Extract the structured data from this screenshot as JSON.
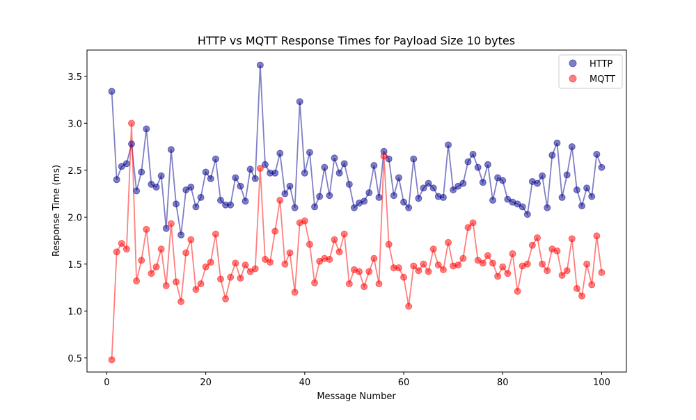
{
  "chart_data": {
    "type": "line",
    "title": "HTTP vs MQTT Response Times for Payload Size 10 bytes",
    "xlabel": "Message Number",
    "ylabel": "Response Time (ms)",
    "xlim": [
      -4.0,
      105.0
    ],
    "ylim": [
      0.35,
      3.78
    ],
    "xticks": [
      0,
      20,
      40,
      60,
      80,
      100
    ],
    "xtick_labels": [
      "0",
      "20",
      "40",
      "60",
      "80",
      "100"
    ],
    "yticks": [
      0.5,
      1.0,
      1.5,
      2.0,
      2.5,
      3.0,
      3.5
    ],
    "ytick_labels": [
      "0.5",
      "1.0",
      "1.5",
      "2.0",
      "2.5",
      "3.0",
      "3.5"
    ],
    "grid": false,
    "legend_position": "top-right",
    "x": [
      1,
      2,
      3,
      4,
      5,
      6,
      7,
      8,
      9,
      10,
      11,
      12,
      13,
      14,
      15,
      16,
      17,
      18,
      19,
      20,
      21,
      22,
      23,
      24,
      25,
      26,
      27,
      28,
      29,
      30,
      31,
      32,
      33,
      34,
      35,
      36,
      37,
      38,
      39,
      40,
      41,
      42,
      43,
      44,
      45,
      46,
      47,
      48,
      49,
      50,
      51,
      52,
      53,
      54,
      55,
      56,
      57,
      58,
      59,
      60,
      61,
      62,
      63,
      64,
      65,
      66,
      67,
      68,
      69,
      70,
      71,
      72,
      73,
      74,
      75,
      76,
      77,
      78,
      79,
      80,
      81,
      82,
      83,
      84,
      85,
      86,
      87,
      88,
      89,
      90,
      91,
      92,
      93,
      94,
      95,
      96,
      97,
      98,
      99,
      100
    ],
    "series": [
      {
        "name": "HTTP",
        "color": "#00008b",
        "values": [
          3.34,
          2.4,
          2.54,
          2.57,
          2.78,
          2.28,
          2.48,
          2.94,
          2.35,
          2.32,
          2.44,
          1.88,
          2.72,
          2.14,
          1.81,
          2.29,
          2.32,
          2.11,
          2.21,
          2.48,
          2.41,
          2.62,
          2.18,
          2.13,
          2.13,
          2.42,
          2.33,
          2.17,
          2.51,
          2.41,
          3.62,
          2.56,
          2.47,
          2.47,
          2.68,
          2.25,
          2.33,
          2.1,
          3.23,
          2.47,
          2.69,
          2.11,
          2.22,
          2.53,
          2.23,
          2.63,
          2.47,
          2.57,
          2.35,
          2.1,
          2.15,
          2.17,
          2.26,
          2.55,
          2.21,
          2.7,
          2.62,
          2.23,
          2.42,
          2.16,
          2.1,
          2.62,
          2.2,
          2.31,
          2.36,
          2.31,
          2.22,
          2.21,
          2.77,
          2.29,
          2.33,
          2.36,
          2.59,
          2.67,
          2.53,
          2.37,
          2.56,
          2.18,
          2.42,
          2.39,
          2.19,
          2.16,
          2.14,
          2.11,
          2.03,
          2.38,
          2.36,
          2.44,
          2.1,
          2.66,
          2.79,
          2.21,
          2.45,
          2.75,
          2.29,
          2.12,
          2.31,
          2.22,
          2.67,
          2.53
        ]
      },
      {
        "name": "MQTT",
        "color": "#ff0000",
        "values": [
          0.48,
          1.63,
          1.72,
          1.66,
          3.0,
          1.32,
          1.54,
          1.87,
          1.4,
          1.47,
          1.66,
          1.27,
          1.93,
          1.31,
          1.1,
          1.62,
          1.76,
          1.23,
          1.29,
          1.47,
          1.52,
          1.82,
          1.34,
          1.13,
          1.36,
          1.51,
          1.35,
          1.49,
          1.42,
          1.45,
          2.52,
          1.55,
          1.52,
          1.85,
          2.18,
          1.5,
          1.62,
          1.2,
          1.94,
          1.96,
          1.71,
          1.3,
          1.53,
          1.56,
          1.55,
          1.76,
          1.63,
          1.82,
          1.29,
          1.44,
          1.42,
          1.26,
          1.42,
          1.56,
          1.29,
          2.65,
          1.71,
          1.46,
          1.46,
          1.36,
          1.05,
          1.48,
          1.43,
          1.5,
          1.42,
          1.66,
          1.49,
          1.44,
          1.73,
          1.48,
          1.49,
          1.56,
          1.89,
          1.94,
          1.54,
          1.51,
          1.59,
          1.51,
          1.37,
          1.47,
          1.4,
          1.61,
          1.21,
          1.48,
          1.5,
          1.7,
          1.78,
          1.5,
          1.43,
          1.66,
          1.64,
          1.38,
          1.43,
          1.77,
          1.24,
          1.16,
          1.5,
          1.28,
          1.8,
          1.41
        ]
      }
    ]
  }
}
